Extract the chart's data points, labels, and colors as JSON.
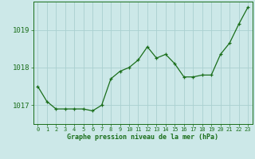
{
  "hours": [
    0,
    1,
    2,
    3,
    4,
    5,
    6,
    7,
    8,
    9,
    10,
    11,
    12,
    13,
    14,
    15,
    16,
    17,
    18,
    19,
    20,
    21,
    22,
    23
  ],
  "pressure": [
    1017.5,
    1017.1,
    1016.9,
    1016.9,
    1016.9,
    1016.9,
    1016.85,
    1017.0,
    1017.7,
    1017.9,
    1018.0,
    1018.2,
    1018.55,
    1018.25,
    1018.35,
    1018.1,
    1017.75,
    1017.75,
    1017.8,
    1017.8,
    1018.35,
    1018.65,
    1019.15,
    1019.6
  ],
  "line_color": "#1a6e1a",
  "marker_color": "#1a6e1a",
  "bg_color": "#cce8e8",
  "grid_color": "#aad0d0",
  "axis_label_color": "#1a6e1a",
  "xlabel": "Graphe pression niveau de la mer (hPa)",
  "ylim_min": 1016.5,
  "ylim_max": 1019.75,
  "yticks": [
    1017,
    1018,
    1019
  ],
  "xtick_labels": [
    "0",
    "1",
    "2",
    "3",
    "4",
    "5",
    "6",
    "7",
    "8",
    "9",
    "10",
    "11",
    "12",
    "13",
    "14",
    "15",
    "16",
    "17",
    "18",
    "19",
    "20",
    "21",
    "22",
    "23"
  ]
}
